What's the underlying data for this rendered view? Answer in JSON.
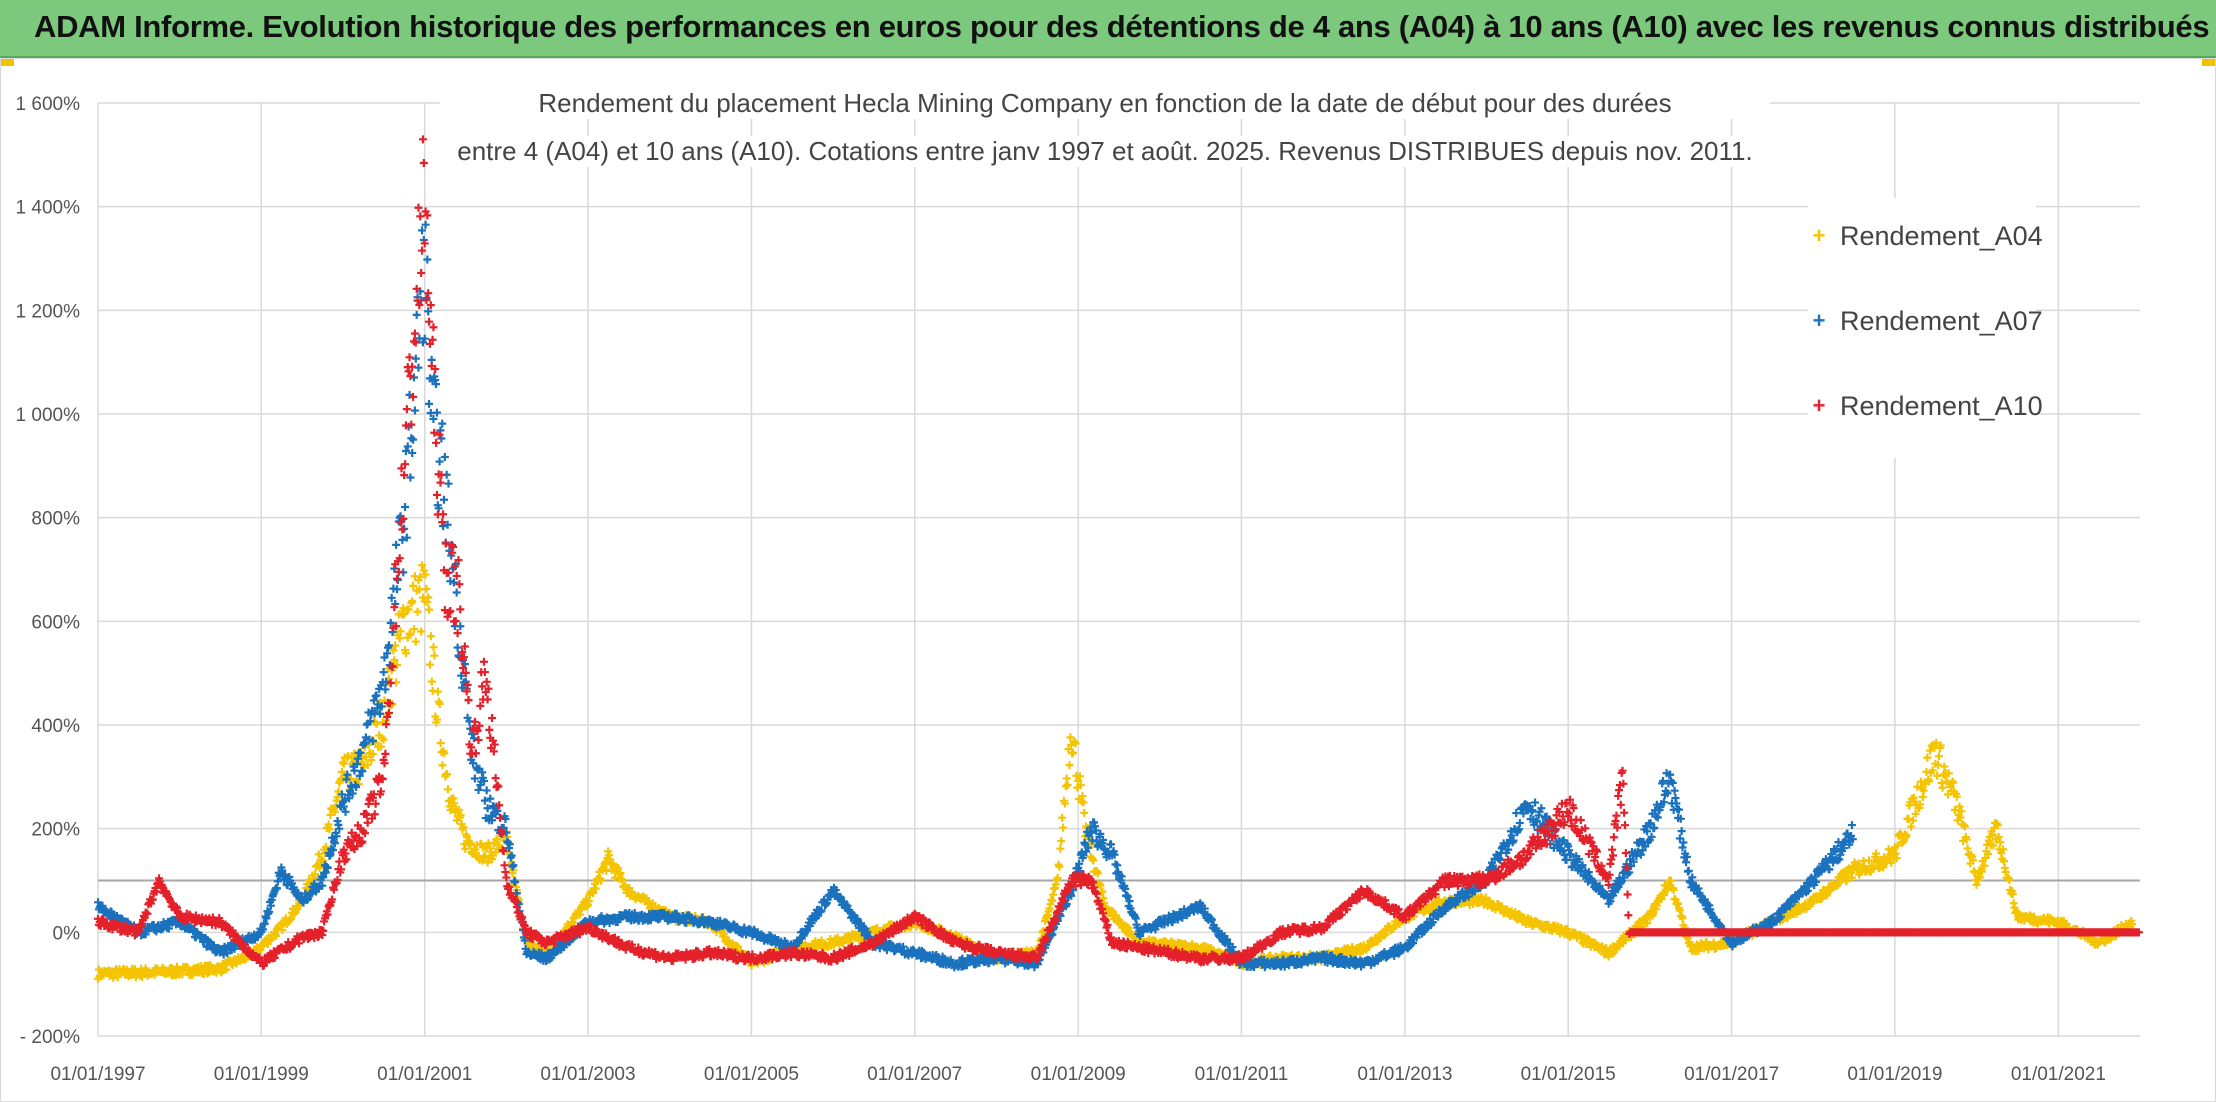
{
  "banner": {
    "title": "ADAM Informe. Evolution historique des performances en euros pour des détentions de 4 ans (A04) à 10 ans (A10) avec les revenus connus distribués"
  },
  "chart_data": {
    "type": "scatter",
    "title_line1": "Rendement du placement Hecla Mining Company en fonction de la date de début pour des durées",
    "title_line2": "entre 4 (A04) et 10 ans (A10). Cotations entre janv 1997 et août. 2025. Revenus DISTRIBUES depuis nov. 2011.",
    "xlabel": "",
    "ylabel": "",
    "x_range": [
      "1997-01-01",
      "2021-12-31"
    ],
    "y_range": [
      -200,
      1600
    ],
    "y_ticks": [
      -200,
      0,
      200,
      400,
      600,
      800,
      1000,
      1200,
      1400,
      1600
    ],
    "y_tick_labels": [
      "- 200%",
      "0%",
      "200%",
      "400%",
      "600%",
      "800%",
      "1 000%",
      "1 200%",
      "1 400%",
      "1 600%"
    ],
    "x_tick_labels": [
      "01/01/1997",
      "01/01/1999",
      "01/01/2001",
      "01/01/2003",
      "01/01/2005",
      "01/01/2007",
      "01/01/2009",
      "01/01/2011",
      "01/01/2013",
      "01/01/2015",
      "01/01/2017",
      "01/01/2019",
      "01/01/2021"
    ],
    "x_tick_years": [
      1997,
      1999,
      2001,
      2003,
      2005,
      2007,
      2009,
      2011,
      2013,
      2015,
      2017,
      2019,
      2021
    ],
    "reference_line_y": 100,
    "grid": true,
    "legend_position": "top-right",
    "marker": "+",
    "series": [
      {
        "name": "Rendement_A04",
        "color": "#f5c400",
        "points": [
          [
            "1997-01-01",
            -80
          ],
          [
            "1997-07-01",
            -78
          ],
          [
            "1998-01-01",
            -75
          ],
          [
            "1998-07-01",
            -70
          ],
          [
            "1998-12-01",
            -40
          ],
          [
            "1999-04-01",
            10
          ],
          [
            "1999-07-01",
            60
          ],
          [
            "1999-10-01",
            150
          ],
          [
            "2000-01-01",
            300
          ],
          [
            "2000-04-01",
            320
          ],
          [
            "2000-07-01",
            420
          ],
          [
            "2000-10-01",
            600
          ],
          [
            "2001-01-01",
            650
          ],
          [
            "2001-03-01",
            420
          ],
          [
            "2001-05-01",
            250
          ],
          [
            "2001-07-01",
            180
          ],
          [
            "2001-10-01",
            150
          ],
          [
            "2002-01-01",
            180
          ],
          [
            "2002-04-01",
            -20
          ],
          [
            "2002-07-01",
            -40
          ],
          [
            "2003-01-01",
            60
          ],
          [
            "2003-04-01",
            140
          ],
          [
            "2003-07-01",
            80
          ],
          [
            "2004-01-01",
            30
          ],
          [
            "2004-07-01",
            20
          ],
          [
            "2005-01-01",
            -60
          ],
          [
            "2005-07-01",
            -30
          ],
          [
            "2006-01-01",
            -20
          ],
          [
            "2006-07-01",
            0
          ],
          [
            "2007-01-01",
            20
          ],
          [
            "2007-07-01",
            -10
          ],
          [
            "2008-01-01",
            -50
          ],
          [
            "2008-07-01",
            -40
          ],
          [
            "2008-10-01",
            100
          ],
          [
            "2008-12-01",
            400
          ],
          [
            "2009-02-01",
            200
          ],
          [
            "2009-05-01",
            50
          ],
          [
            "2009-10-01",
            -20
          ],
          [
            "2010-07-01",
            -30
          ],
          [
            "2011-01-01",
            -60
          ],
          [
            "2011-07-01",
            -50
          ],
          [
            "2012-01-01",
            -50
          ],
          [
            "2012-07-01",
            -30
          ],
          [
            "2013-01-01",
            30
          ],
          [
            "2013-07-01",
            60
          ],
          [
            "2014-01-01",
            60
          ],
          [
            "2014-07-01",
            20
          ],
          [
            "2015-01-01",
            0
          ],
          [
            "2015-07-01",
            -40
          ],
          [
            "2016-01-01",
            30
          ],
          [
            "2016-04-01",
            100
          ],
          [
            "2016-07-01",
            -30
          ],
          [
            "2017-01-01",
            -20
          ],
          [
            "2017-07-01",
            20
          ],
          [
            "2018-01-01",
            60
          ],
          [
            "2018-07-01",
            120
          ],
          [
            "2019-01-01",
            150
          ],
          [
            "2019-07-01",
            350
          ],
          [
            "2019-10-01",
            250
          ],
          [
            "2020-01-01",
            100
          ],
          [
            "2020-04-01",
            200
          ],
          [
            "2020-07-01",
            30
          ],
          [
            "2021-01-01",
            20
          ],
          [
            "2021-07-01",
            -20
          ],
          [
            "2021-12-01",
            20
          ]
        ]
      },
      {
        "name": "Rendement_A07",
        "color": "#1a72be",
        "points": [
          [
            "1997-01-01",
            50
          ],
          [
            "1997-07-01",
            0
          ],
          [
            "1998-01-01",
            20
          ],
          [
            "1998-07-01",
            -40
          ],
          [
            "1999-01-01",
            0
          ],
          [
            "1999-04-01",
            120
          ],
          [
            "1999-07-01",
            60
          ],
          [
            "1999-10-01",
            100
          ],
          [
            "2000-01-01",
            250
          ],
          [
            "2000-04-01",
            350
          ],
          [
            "2000-07-01",
            480
          ],
          [
            "2000-10-01",
            800
          ],
          [
            "2001-01-01",
            1300
          ],
          [
            "2001-02-01",
            1000
          ],
          [
            "2001-04-01",
            850
          ],
          [
            "2001-06-01",
            600
          ],
          [
            "2001-08-01",
            350
          ],
          [
            "2001-10-01",
            250
          ],
          [
            "2002-01-01",
            200
          ],
          [
            "2002-04-01",
            -40
          ],
          [
            "2002-07-01",
            -50
          ],
          [
            "2003-01-01",
            20
          ],
          [
            "2003-07-01",
            30
          ],
          [
            "2004-01-01",
            30
          ],
          [
            "2004-07-01",
            20
          ],
          [
            "2005-01-01",
            0
          ],
          [
            "2005-07-01",
            -30
          ],
          [
            "2006-01-01",
            80
          ],
          [
            "2006-07-01",
            -20
          ],
          [
            "2007-01-01",
            -40
          ],
          [
            "2007-07-01",
            -60
          ],
          [
            "2008-01-01",
            -50
          ],
          [
            "2008-07-01",
            -60
          ],
          [
            "2008-12-01",
            80
          ],
          [
            "2009-03-01",
            200
          ],
          [
            "2009-06-01",
            150
          ],
          [
            "2009-10-01",
            0
          ],
          [
            "2010-07-01",
            50
          ],
          [
            "2011-01-01",
            -60
          ],
          [
            "2011-07-01",
            -60
          ],
          [
            "2012-01-01",
            -50
          ],
          [
            "2012-07-01",
            -60
          ],
          [
            "2013-01-01",
            -30
          ],
          [
            "2013-07-01",
            50
          ],
          [
            "2014-01-01",
            100
          ],
          [
            "2014-07-01",
            250
          ],
          [
            "2015-01-01",
            150
          ],
          [
            "2015-07-01",
            60
          ],
          [
            "2016-01-01",
            200
          ],
          [
            "2016-04-01",
            300
          ],
          [
            "2016-07-01",
            100
          ],
          [
            "2017-01-01",
            -20
          ],
          [
            "2017-07-01",
            20
          ],
          [
            "2018-01-01",
            100
          ],
          [
            "2018-07-01",
            190
          ]
        ]
      },
      {
        "name": "Rendement_A10",
        "color": "#e4202a",
        "points": [
          [
            "1997-01-01",
            20
          ],
          [
            "1997-07-01",
            0
          ],
          [
            "1997-10-01",
            100
          ],
          [
            "1998-01-01",
            30
          ],
          [
            "1998-07-01",
            20
          ],
          [
            "1999-01-01",
            -60
          ],
          [
            "1999-07-01",
            -10
          ],
          [
            "1999-10-01",
            0
          ],
          [
            "2000-01-01",
            150
          ],
          [
            "2000-04-01",
            200
          ],
          [
            "2000-07-01",
            300
          ],
          [
            "2000-10-01",
            900
          ],
          [
            "2001-01-01",
            1420
          ],
          [
            "2001-02-01",
            1100
          ],
          [
            "2001-04-01",
            700
          ],
          [
            "2001-06-01",
            650
          ],
          [
            "2001-08-01",
            350
          ],
          [
            "2001-10-01",
            500
          ],
          [
            "2002-01-01",
            100
          ],
          [
            "2002-04-01",
            0
          ],
          [
            "2002-07-01",
            -20
          ],
          [
            "2003-01-01",
            10
          ],
          [
            "2003-07-01",
            -30
          ],
          [
            "2004-01-01",
            -50
          ],
          [
            "2004-07-01",
            -40
          ],
          [
            "2005-01-01",
            -50
          ],
          [
            "2005-07-01",
            -40
          ],
          [
            "2006-01-01",
            -50
          ],
          [
            "2006-07-01",
            -20
          ],
          [
            "2007-01-01",
            30
          ],
          [
            "2007-07-01",
            -20
          ],
          [
            "2008-01-01",
            -40
          ],
          [
            "2008-07-01",
            -50
          ],
          [
            "2008-12-01",
            100
          ],
          [
            "2009-03-01",
            100
          ],
          [
            "2009-06-01",
            -20
          ],
          [
            "2009-10-01",
            -30
          ],
          [
            "2010-07-01",
            -50
          ],
          [
            "2011-01-01",
            -50
          ],
          [
            "2011-07-01",
            0
          ],
          [
            "2012-01-01",
            10
          ],
          [
            "2012-07-01",
            80
          ],
          [
            "2013-01-01",
            30
          ],
          [
            "2013-07-01",
            100
          ],
          [
            "2014-01-01",
            100
          ],
          [
            "2014-07-01",
            150
          ],
          [
            "2015-01-01",
            240
          ],
          [
            "2015-07-01",
            100
          ],
          [
            "2015-09-01",
            300
          ],
          [
            "2015-10-01",
            0
          ],
          [
            "2016-07-01",
            0
          ],
          [
            "2017-07-01",
            0
          ],
          [
            "2018-07-01",
            0
          ],
          [
            "2019-07-01",
            0
          ],
          [
            "2020-07-01",
            0
          ],
          [
            "2021-07-01",
            0
          ],
          [
            "2021-12-31",
            0
          ]
        ]
      }
    ]
  }
}
